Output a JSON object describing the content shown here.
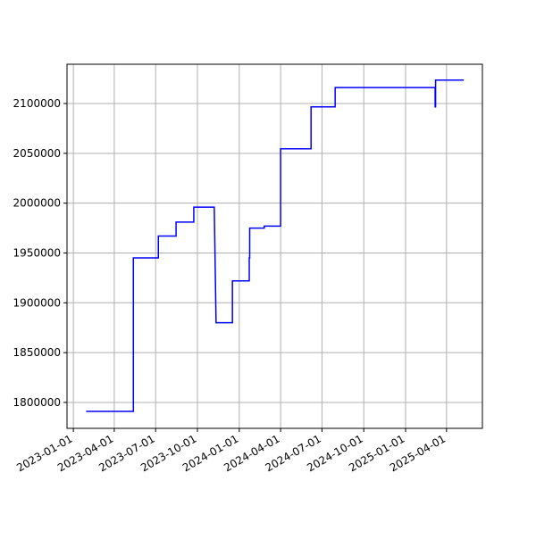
{
  "chart_data": {
    "type": "line",
    "grid": true,
    "x": [
      "2023-01-29",
      "2023-05-13",
      "2023-05-13",
      "2023-07-07",
      "2023-07-07",
      "2023-08-15",
      "2023-08-15",
      "2023-09-23",
      "2023-09-23",
      "2023-11-07",
      "2023-11-11",
      "2023-12-17",
      "2023-12-17",
      "2024-01-23",
      "2024-01-23",
      "2024-01-24",
      "2024-01-24",
      "2024-02-25",
      "2024-02-25",
      "2024-04-01",
      "2024-04-01",
      "2024-06-07",
      "2024-06-07",
      "2024-07-30",
      "2024-07-30",
      "2025-03-07",
      "2025-03-07",
      "2025-03-08",
      "2025-03-08",
      "2025-05-09"
    ],
    "series": [
      {
        "color": "#0000ff",
        "values": [
          1791000,
          1791000,
          1945000,
          1945000,
          1967000,
          1967000,
          1981000,
          1981000,
          1996000,
          1996000,
          1880000,
          1880000,
          1922000,
          1922000,
          1945000,
          1945000,
          1975000,
          1975000,
          1977000,
          1977000,
          2054500,
          2054500,
          2096600,
          2096600,
          2116000,
          2116000,
          2096600,
          2096600,
          2123500,
          2123500
        ]
      }
    ],
    "xlim": [
      "2022-12-18",
      "2025-06-19"
    ],
    "xticks": [
      "2023-01-01",
      "2023-04-01",
      "2023-07-01",
      "2023-10-01",
      "2024-01-01",
      "2024-04-01",
      "2024-07-01",
      "2024-10-01",
      "2025-01-01",
      "2025-04-01"
    ],
    "ylim": [
      1774000,
      2139400
    ],
    "yticks": [
      1800000,
      1850000,
      1900000,
      1950000,
      2000000,
      2050000,
      2100000
    ]
  }
}
